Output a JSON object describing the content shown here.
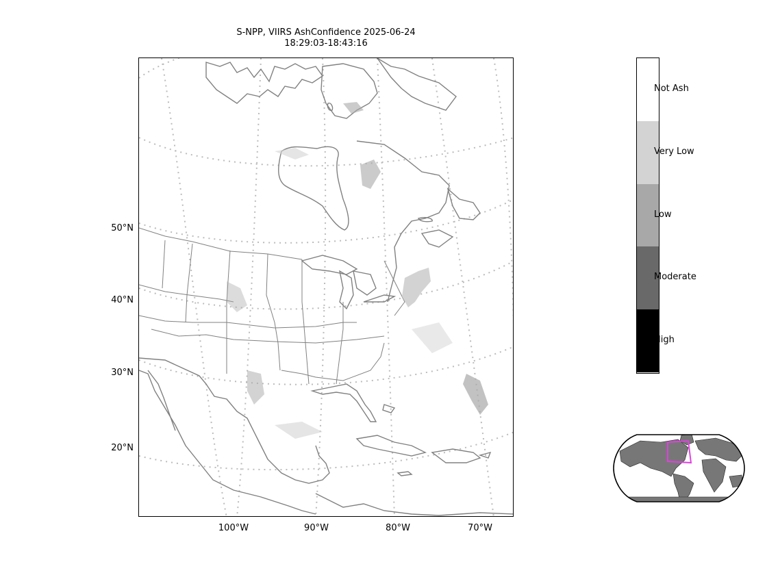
{
  "title": {
    "line1": "S-NPP, VIIRS AshConfidence 2025-06-24",
    "line2": "18:29:03-18:43:16"
  },
  "map": {
    "lat_labels": [
      "50°N",
      "40°N",
      "30°N",
      "20°N"
    ],
    "lon_labels": [
      "100°W",
      "90°W",
      "80°W",
      "70°W"
    ],
    "colors": {
      "coastline": "#808080",
      "gridline": "#bbbbbb",
      "ash_very_low": "#d3d3d3",
      "ash_low": "#a8a8a8"
    }
  },
  "colorbar": {
    "categories": [
      {
        "label": "Not Ash",
        "color": "#ffffff"
      },
      {
        "label": "Very Low",
        "color": "#d3d3d3"
      },
      {
        "label": "Low",
        "color": "#a8a8a8"
      },
      {
        "label": "Moderate",
        "color": "#696969"
      },
      {
        "label": "High",
        "color": "#000000"
      }
    ]
  },
  "inset": {
    "globe_fill": "#ffffff",
    "land_color": "#777777",
    "region_color": "#e040e0"
  }
}
